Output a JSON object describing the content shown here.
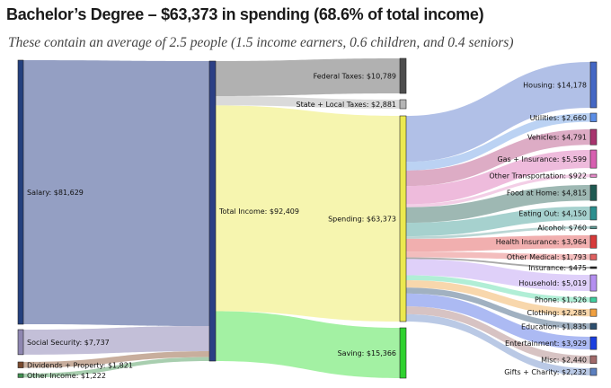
{
  "title": "Bachelor’s Degree – $63,373 in spending (68.6% of total income)",
  "subtitle": "These contain an average of 2.5 people (1.5 income earners, 0.6 children, and 0.4 seniors)",
  "chart_data": {
    "type": "sankey",
    "nodes": [
      {
        "id": "salary",
        "label": "Salary: $81,629",
        "value": 81629,
        "color": "#24407e"
      },
      {
        "id": "social_security",
        "label": "Social Security: $7,737",
        "value": 7737,
        "color": "#8e86b1"
      },
      {
        "id": "dividends",
        "label": "Dividends + Property: $1,821",
        "value": 1821,
        "color": "#7a4a2f"
      },
      {
        "id": "other_income",
        "label": "Other Income: $1,222",
        "value": 1222,
        "color": "#3f8f4f"
      },
      {
        "id": "total_income",
        "label": "Total Income: $92,409",
        "value": 92409,
        "color": "#2b3f85"
      },
      {
        "id": "federal_taxes",
        "label": "Federal Taxes: $10,789",
        "value": 10789,
        "color": "#4d4d4d"
      },
      {
        "id": "state_local_taxes",
        "label": "State + Local Taxes: $2,881",
        "value": 2881,
        "color": "#b5b5b5"
      },
      {
        "id": "spending",
        "label": "Spending: $63,373",
        "value": 63373,
        "color": "#ebe94f"
      },
      {
        "id": "saving",
        "label": "Saving: $15,366",
        "value": 15366,
        "color": "#2fd12f"
      },
      {
        "id": "housing",
        "label": "Housing: $14,178",
        "value": 14178,
        "color": "#4467c4"
      },
      {
        "id": "utilities",
        "label": "Utilities: $2,660",
        "value": 2660,
        "color": "#5b8ee6"
      },
      {
        "id": "vehicles",
        "label": "Vehicles: $4,791",
        "value": 4791,
        "color": "#a8346e"
      },
      {
        "id": "gas_insurance",
        "label": "Gas + Insurance: $5,599",
        "value": 5599,
        "color": "#d75fb0"
      },
      {
        "id": "other_transportation",
        "label": "Other Transportation: $922",
        "value": 922,
        "color": "#e58ac8"
      },
      {
        "id": "food_at_home",
        "label": "Food at Home: $4,815",
        "value": 4815,
        "color": "#1f5a52"
      },
      {
        "id": "eating_out",
        "label": "Eating Out: $4,150",
        "value": 4150,
        "color": "#2b8f8f"
      },
      {
        "id": "alcohol",
        "label": "Alcohol: $760",
        "value": 760,
        "color": "#5e9e98"
      },
      {
        "id": "health_insurance",
        "label": "Health Insurance: $3,964",
        "value": 3964,
        "color": "#d83a3a"
      },
      {
        "id": "other_medical",
        "label": "Other Medical: $1,793",
        "value": 1793,
        "color": "#e06060"
      },
      {
        "id": "insurance",
        "label": "Insurance: $475",
        "value": 475,
        "color": "#222222"
      },
      {
        "id": "household",
        "label": "Household: $5,019",
        "value": 5019,
        "color": "#b48ff0"
      },
      {
        "id": "phone",
        "label": "Phone: $1,526",
        "value": 1526,
        "color": "#3fcf9f"
      },
      {
        "id": "clothing",
        "label": "Clothing: $2,285",
        "value": 2285,
        "color": "#f0a040"
      },
      {
        "id": "education",
        "label": "Education: $1,835",
        "value": 1835,
        "color": "#2c4f6f"
      },
      {
        "id": "entertainment",
        "label": "Entertainment: $3,929",
        "value": 3929,
        "color": "#1a3fe0"
      },
      {
        "id": "misc",
        "label": "Misc: $2,440",
        "value": 2440,
        "color": "#a06a6a"
      },
      {
        "id": "gifts_charity",
        "label": "Gifts + Charity: $2,232",
        "value": 2232,
        "color": "#5b7fbf"
      }
    ],
    "links": [
      {
        "source": "salary",
        "target": "total_income",
        "value": 81629,
        "color": "#8895bd"
      },
      {
        "source": "social_security",
        "target": "total_income",
        "value": 7737,
        "color": "#bdb8d4"
      },
      {
        "source": "dividends",
        "target": "total_income",
        "value": 1821,
        "color": "#c2a592"
      },
      {
        "source": "other_income",
        "target": "total_income",
        "value": 1222,
        "color": "#9fc9a6"
      },
      {
        "source": "total_income",
        "target": "federal_taxes",
        "value": 10789,
        "color": "#a9a9a9"
      },
      {
        "source": "total_income",
        "target": "state_local_taxes",
        "value": 2881,
        "color": "#d6d6d6"
      },
      {
        "source": "total_income",
        "target": "spending",
        "value": 63373,
        "color": "#f5f4a6"
      },
      {
        "source": "total_income",
        "target": "saving",
        "value": 15366,
        "color": "#99f099"
      },
      {
        "source": "spending",
        "target": "housing",
        "value": 14178,
        "color": "#a9b9e4"
      },
      {
        "source": "spending",
        "target": "utilities",
        "value": 2660,
        "color": "#b4cdf2"
      },
      {
        "source": "spending",
        "target": "vehicles",
        "value": 4791,
        "color": "#d9a3bf"
      },
      {
        "source": "spending",
        "target": "gas_insurance",
        "value": 5599,
        "color": "#ecb4d8"
      },
      {
        "source": "spending",
        "target": "other_transportation",
        "value": 922,
        "color": "#f2c9e3"
      },
      {
        "source": "spending",
        "target": "food_at_home",
        "value": 4815,
        "color": "#93b0ab"
      },
      {
        "source": "spending",
        "target": "eating_out",
        "value": 4150,
        "color": "#9cccc9"
      },
      {
        "source": "spending",
        "target": "alcohol",
        "value": 760,
        "color": "#b3d2cf"
      },
      {
        "source": "spending",
        "target": "health_insurance",
        "value": 3964,
        "color": "#f0a6a6"
      },
      {
        "source": "spending",
        "target": "other_medical",
        "value": 1793,
        "color": "#f2b6b6"
      },
      {
        "source": "spending",
        "target": "insurance",
        "value": 475,
        "color": "#a0a0a0"
      },
      {
        "source": "spending",
        "target": "household",
        "value": 5019,
        "color": "#dccbf8"
      },
      {
        "source": "spending",
        "target": "phone",
        "value": 1526,
        "color": "#a8ecd2"
      },
      {
        "source": "spending",
        "target": "clothing",
        "value": 2285,
        "color": "#f7d3a3"
      },
      {
        "source": "spending",
        "target": "education",
        "value": 1835,
        "color": "#97a9ba"
      },
      {
        "source": "spending",
        "target": "entertainment",
        "value": 3929,
        "color": "#a3b3f2"
      },
      {
        "source": "spending",
        "target": "misc",
        "value": 2440,
        "color": "#d3bcbc"
      },
      {
        "source": "spending",
        "target": "gifts_charity",
        "value": 2232,
        "color": "#b2c3e2"
      }
    ]
  }
}
